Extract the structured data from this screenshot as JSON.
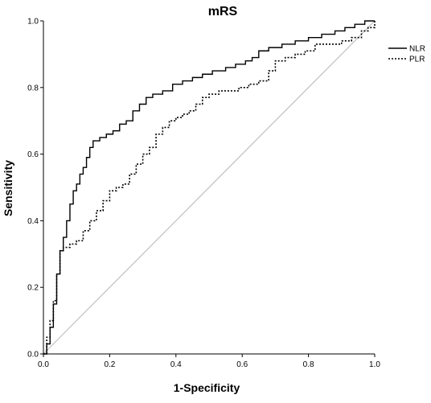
{
  "chart_data": {
    "type": "line",
    "title": "mRS",
    "xlabel": "1-Specificity",
    "ylabel": "Sensitivity",
    "xlim": [
      0,
      1
    ],
    "ylim": [
      0,
      1
    ],
    "x_ticks": [
      "0.0",
      "0.2",
      "0.4",
      "0.6",
      "0.8",
      "1.0"
    ],
    "y_ticks": [
      "0.0",
      "0.2",
      "0.4",
      "0.6",
      "0.8",
      "1.0"
    ],
    "grid": false,
    "legend_position": "top-right",
    "series": [
      {
        "name": "NLR",
        "style": "solid",
        "color": "#000000",
        "points": [
          [
            0.0,
            0.0
          ],
          [
            0.01,
            0.03
          ],
          [
            0.02,
            0.08
          ],
          [
            0.03,
            0.15
          ],
          [
            0.04,
            0.24
          ],
          [
            0.05,
            0.31
          ],
          [
            0.06,
            0.35
          ],
          [
            0.07,
            0.4
          ],
          [
            0.08,
            0.45
          ],
          [
            0.09,
            0.49
          ],
          [
            0.1,
            0.51
          ],
          [
            0.11,
            0.54
          ],
          [
            0.12,
            0.56
          ],
          [
            0.13,
            0.59
          ],
          [
            0.14,
            0.62
          ],
          [
            0.15,
            0.64
          ],
          [
            0.17,
            0.65
          ],
          [
            0.19,
            0.66
          ],
          [
            0.21,
            0.67
          ],
          [
            0.23,
            0.69
          ],
          [
            0.25,
            0.7
          ],
          [
            0.27,
            0.73
          ],
          [
            0.29,
            0.75
          ],
          [
            0.31,
            0.77
          ],
          [
            0.33,
            0.78
          ],
          [
            0.36,
            0.79
          ],
          [
            0.39,
            0.81
          ],
          [
            0.42,
            0.82
          ],
          [
            0.45,
            0.83
          ],
          [
            0.48,
            0.84
          ],
          [
            0.51,
            0.85
          ],
          [
            0.55,
            0.86
          ],
          [
            0.58,
            0.87
          ],
          [
            0.61,
            0.88
          ],
          [
            0.63,
            0.89
          ],
          [
            0.65,
            0.91
          ],
          [
            0.68,
            0.92
          ],
          [
            0.72,
            0.93
          ],
          [
            0.76,
            0.94
          ],
          [
            0.8,
            0.95
          ],
          [
            0.84,
            0.96
          ],
          [
            0.88,
            0.97
          ],
          [
            0.91,
            0.98
          ],
          [
            0.94,
            0.99
          ],
          [
            0.97,
            1.0
          ],
          [
            1.0,
            1.0
          ]
        ]
      },
      {
        "name": "PLR",
        "style": "dotted",
        "color": "#000000",
        "points": [
          [
            0.0,
            0.0
          ],
          [
            0.01,
            0.05
          ],
          [
            0.02,
            0.1
          ],
          [
            0.03,
            0.16
          ],
          [
            0.04,
            0.24
          ],
          [
            0.05,
            0.31
          ],
          [
            0.06,
            0.32
          ],
          [
            0.08,
            0.33
          ],
          [
            0.1,
            0.34
          ],
          [
            0.12,
            0.37
          ],
          [
            0.14,
            0.4
          ],
          [
            0.16,
            0.43
          ],
          [
            0.18,
            0.46
          ],
          [
            0.2,
            0.49
          ],
          [
            0.22,
            0.5
          ],
          [
            0.24,
            0.51
          ],
          [
            0.26,
            0.54
          ],
          [
            0.28,
            0.57
          ],
          [
            0.3,
            0.6
          ],
          [
            0.32,
            0.62
          ],
          [
            0.34,
            0.66
          ],
          [
            0.36,
            0.68
          ],
          [
            0.38,
            0.7
          ],
          [
            0.4,
            0.71
          ],
          [
            0.42,
            0.72
          ],
          [
            0.44,
            0.73
          ],
          [
            0.46,
            0.75
          ],
          [
            0.48,
            0.77
          ],
          [
            0.5,
            0.78
          ],
          [
            0.53,
            0.79
          ],
          [
            0.56,
            0.79
          ],
          [
            0.59,
            0.8
          ],
          [
            0.62,
            0.81
          ],
          [
            0.65,
            0.82
          ],
          [
            0.68,
            0.85
          ],
          [
            0.7,
            0.88
          ],
          [
            0.73,
            0.89
          ],
          [
            0.76,
            0.9
          ],
          [
            0.79,
            0.91
          ],
          [
            0.82,
            0.93
          ],
          [
            0.86,
            0.93
          ],
          [
            0.9,
            0.94
          ],
          [
            0.93,
            0.95
          ],
          [
            0.96,
            0.97
          ],
          [
            0.98,
            0.98
          ],
          [
            1.0,
            1.0
          ]
        ]
      }
    ],
    "reference_line": {
      "style": "solid",
      "color": "#c0c0c0",
      "from": [
        0,
        0
      ],
      "to": [
        1,
        1
      ]
    }
  }
}
